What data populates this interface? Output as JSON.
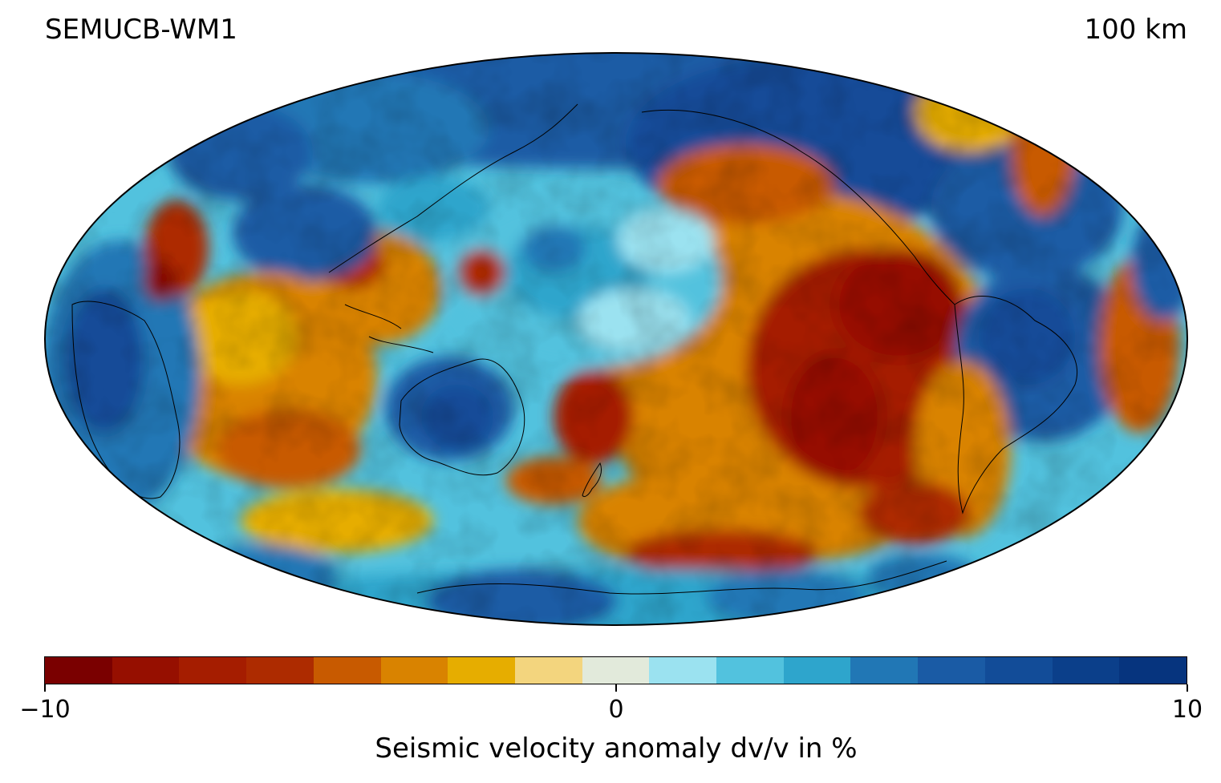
{
  "title_left": "SEMUCB-WM1",
  "title_right": "100 km",
  "colorbar": {
    "label": "Seismic velocity anomaly dv/v in %",
    "min": -10,
    "max": 10,
    "ticks": [
      "−10",
      "0",
      "10"
    ],
    "colors": [
      "#7a0000",
      "#960f00",
      "#a51d00",
      "#ad2b00",
      "#c85a00",
      "#d98300",
      "#e6ad00",
      "#f3d57e",
      "#e2eadb",
      "#9be2f0",
      "#52c2de",
      "#2ea5cc",
      "#2177b5",
      "#1a5ba5",
      "#124c98",
      "#0b3f8a",
      "#06347e"
    ]
  },
  "map": {
    "projection": "Mollweide",
    "central_meridian": "180",
    "coastlines": true,
    "features": [
      {
        "name": "pacific-slow-anomaly",
        "sign": "slow"
      },
      {
        "name": "western-pacific-fast-anomaly",
        "sign": "fast"
      },
      {
        "name": "australia-fast-anomaly",
        "sign": "fast"
      },
      {
        "name": "south-america-fast-anomaly",
        "sign": "fast"
      },
      {
        "name": "antarctica-fast-anomaly",
        "sign": "fast"
      },
      {
        "name": "africa-fast-anomaly",
        "sign": "fast"
      },
      {
        "name": "east-pacific-rise-slow-anomaly",
        "sign": "slow"
      },
      {
        "name": "indian-ocean-slow-anomaly",
        "sign": "slow"
      }
    ]
  }
}
